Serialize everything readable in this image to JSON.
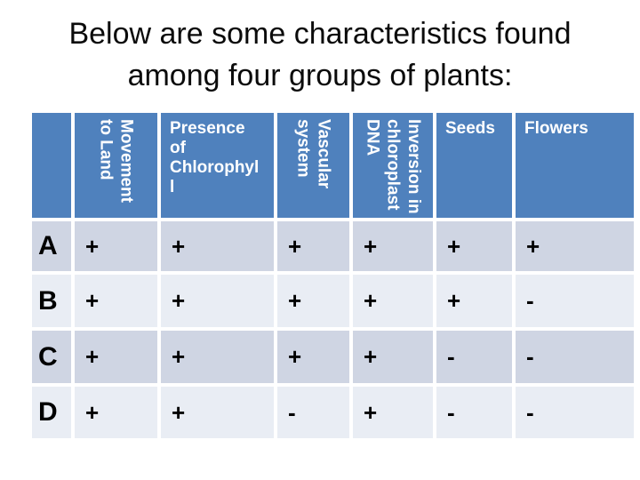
{
  "title": {
    "line1": "Below are some characteristics found",
    "line2": "among four groups of plants:"
  },
  "table": {
    "corner_label": "",
    "headers": {
      "movement": "Movement\nto Land",
      "chlorophyll": "Presence\nof\nChlorophyl\nl",
      "vascular": "Vascular\nsystem",
      "inversion": "Inversion in\nchloroplast\nDNA",
      "seeds": "Seeds",
      "flowers": "Flowers"
    },
    "rows": [
      {
        "group": "A",
        "values": [
          "+",
          "+",
          "+",
          "+",
          "+",
          "+"
        ]
      },
      {
        "group": "B",
        "values": [
          "+",
          "+",
          "+",
          "+",
          "+",
          "-"
        ]
      },
      {
        "group": "C",
        "values": [
          "+",
          "+",
          "+",
          "+",
          "-",
          "-"
        ]
      },
      {
        "group": "D",
        "values": [
          "+",
          "+",
          "-",
          "+",
          "-",
          "-"
        ]
      }
    ]
  },
  "colors": {
    "background": "#ffffff",
    "header_bg": "#4f81bd",
    "header_text": "#ffffff",
    "band_dark": "#cfd5e3",
    "band_light": "#e9edf4",
    "body_text": "#000000",
    "title_text": "#0b0b0b"
  }
}
